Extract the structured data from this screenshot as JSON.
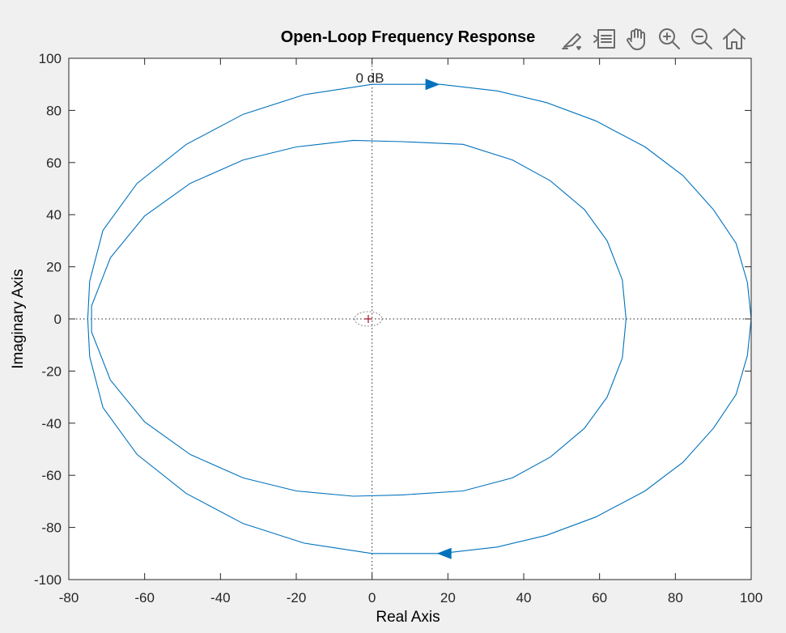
{
  "toolbar": {
    "icons": [
      "brush-data-icon",
      "legend-icon",
      "pan-icon",
      "zoom-in-icon",
      "zoom-out-icon",
      "home-icon"
    ]
  },
  "chart_data": {
    "type": "line",
    "title": "Open-Loop Frequency Response",
    "xlabel": "Real Axis",
    "ylabel": "Imaginary Axis",
    "xlim": [
      -80,
      100
    ],
    "ylim": [
      -100,
      100
    ],
    "xticks": [
      -80,
      -60,
      -40,
      -20,
      0,
      20,
      40,
      60,
      80,
      100
    ],
    "yticks": [
      -100,
      -80,
      -60,
      -40,
      -20,
      0,
      20,
      40,
      60,
      80,
      100
    ],
    "grid": false,
    "annotation": "0 dB",
    "critical_point": [
      -1,
      0
    ],
    "line_color": "#0072bd",
    "critical_color": "#a2142f",
    "series": [
      {
        "points": [
          [
            100,
            0
          ],
          [
            99,
            14
          ],
          [
            96,
            29
          ],
          [
            90,
            42
          ],
          [
            82,
            55
          ],
          [
            72,
            66
          ],
          [
            59,
            76
          ],
          [
            46,
            83
          ],
          [
            33,
            87.5
          ],
          [
            18,
            90
          ],
          [
            0,
            90
          ],
          [
            -18,
            86
          ],
          [
            -34,
            78.5
          ],
          [
            -49,
            67
          ],
          [
            -62,
            52
          ],
          [
            -71,
            34
          ],
          [
            -74.5,
            14.5
          ],
          [
            -75,
            0
          ],
          [
            -74.5,
            -14.5
          ],
          [
            -71,
            -34
          ],
          [
            -62,
            -52
          ],
          [
            -49,
            -67
          ],
          [
            -34,
            -78.5
          ],
          [
            -18,
            -86
          ],
          [
            0,
            -90
          ],
          [
            18,
            -90
          ],
          [
            33,
            -87.5
          ],
          [
            46,
            -83
          ],
          [
            59,
            -76
          ],
          [
            72,
            -66
          ],
          [
            82,
            -55
          ],
          [
            90,
            -42
          ],
          [
            96,
            -29
          ],
          [
            99,
            -14
          ],
          [
            100,
            0
          ]
        ]
      },
      {
        "points": [
          [
            67,
            0
          ],
          [
            66,
            15
          ],
          [
            62,
            30
          ],
          [
            56,
            42
          ],
          [
            47,
            53
          ],
          [
            37,
            61
          ],
          [
            24,
            67
          ],
          [
            8,
            68
          ],
          [
            -5,
            68.5
          ],
          [
            -20,
            66
          ],
          [
            -34,
            61
          ],
          [
            -48,
            52
          ],
          [
            -60,
            39.5
          ],
          [
            -69,
            23.5
          ],
          [
            -74,
            5
          ],
          [
            -74,
            -5
          ],
          [
            -69,
            -23.5
          ],
          [
            -60,
            -39.5
          ],
          [
            -48,
            -52
          ],
          [
            -34,
            -61
          ],
          [
            -20,
            -66
          ],
          [
            -5,
            -68
          ],
          [
            8,
            -67.5
          ],
          [
            24,
            -66
          ],
          [
            37,
            -61
          ],
          [
            47,
            -53
          ],
          [
            56,
            -42
          ],
          [
            62,
            -30
          ],
          [
            66,
            -15
          ],
          [
            67,
            0
          ]
        ]
      }
    ],
    "arrows": [
      {
        "at": [
          16,
          90
        ],
        "direction": "right"
      },
      {
        "at": [
          19,
          -90
        ],
        "direction": "left"
      }
    ]
  }
}
